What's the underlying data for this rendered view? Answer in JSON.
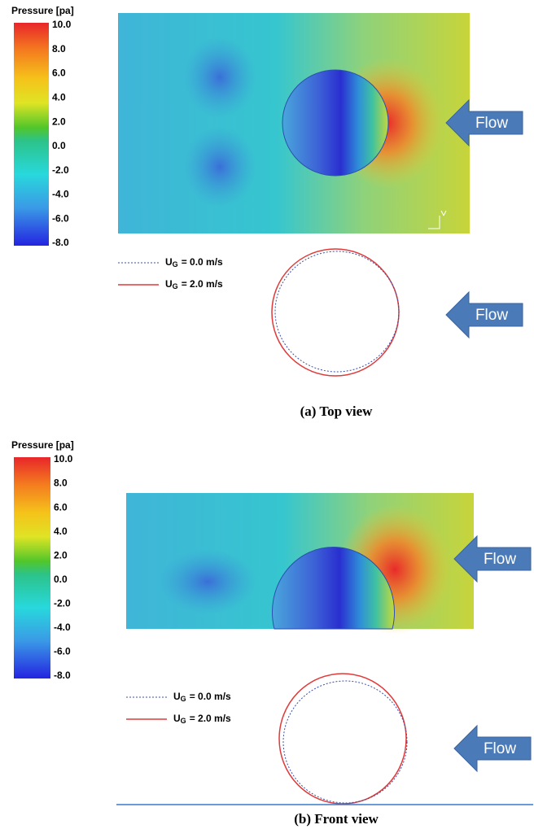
{
  "panels": [
    {
      "colorbar": {
        "title": "Pressure [pa]",
        "ticks": [
          "10.0",
          "8.0",
          "6.0",
          "4.0",
          "2.0",
          "0.0",
          "-2.0",
          "-4.0",
          "-6.0",
          "-8.0"
        ]
      },
      "flow_labels": [
        "Flow",
        "Flow"
      ],
      "legend": [
        {
          "symbol": "U",
          "subscript": "G",
          "text": "= 0.0 m/s"
        },
        {
          "symbol": "U",
          "subscript": "G",
          "text": "= 2.0 m/s"
        }
      ],
      "caption": "(a) Top view"
    },
    {
      "colorbar": {
        "title": "Pressure [pa]",
        "ticks": [
          "10.0",
          "8.0",
          "6.0",
          "4.0",
          "2.0",
          "0.0",
          "-2.0",
          "-4.0",
          "-6.0",
          "-8.0"
        ]
      },
      "flow_labels": [
        "Flow",
        "Flow"
      ],
      "legend": [
        {
          "symbol": "U",
          "subscript": "G",
          "text": "= 0.0 m/s"
        },
        {
          "symbol": "U",
          "subscript": "G",
          "text": "= 2.0 m/s"
        }
      ],
      "caption": "(b) Front view"
    }
  ]
}
